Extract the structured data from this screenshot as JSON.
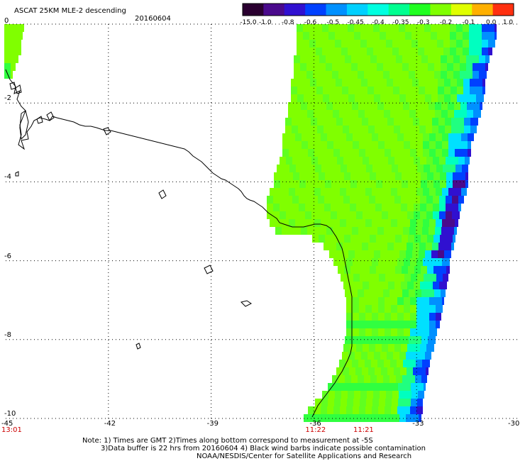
{
  "header": {
    "title": "ASCAT 25KM MLE-2 descending",
    "date": "20160604"
  },
  "colorbar": {
    "labels": [
      "-15.0",
      "-1.0",
      "-0.8",
      "-0.6",
      "-0.5",
      "-0.45",
      "-0.4",
      "-0.35",
      "-0.3",
      "-0.2",
      "-0.1",
      "0.0",
      "1.0"
    ],
    "colors": [
      "#2a0030",
      "#4a0a8c",
      "#3010d0",
      "#0040ff",
      "#0090ff",
      "#00d0ff",
      "#00ffe0",
      "#00ff90",
      "#20ff20",
      "#80ff00",
      "#e0ff00",
      "#ffb000",
      "#ff3010"
    ]
  },
  "axes": {
    "x_ticks": [
      "-45",
      "-42",
      "-39",
      "-36",
      "-33",
      "-30"
    ],
    "y_ticks": [
      "0",
      "-2",
      "-4",
      "-6",
      "-8",
      "-10"
    ],
    "x_range": [
      -45,
      -30
    ],
    "y_range": [
      -10,
      0
    ]
  },
  "times": [
    {
      "label": "13:01",
      "lon": -45
    },
    {
      "label": "11:22",
      "lon": -36
    },
    {
      "label": "11:21",
      "lon": -34.6
    }
  ],
  "notes": {
    "line1": "Note: 1) Times are GMT 2)Times along bottom correspond to measurement at -5S",
    "line2": "3)Data buffer is 22 hrs from 20160604 4) Black wind barbs indicate possible contamination",
    "line3": "NOAA/NESDIS/Center for Satellite Applications and Research"
  }
}
